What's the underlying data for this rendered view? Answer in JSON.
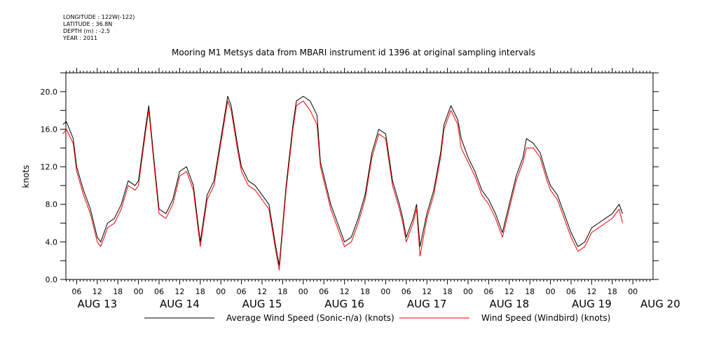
{
  "meta": {
    "longitude": "LONGITUDE : 122W(-122)",
    "latitude": "LATITUDE : 36.8N",
    "depth": "DEPTH (m) : -2.5",
    "year": "YEAR : 2011"
  },
  "chart_data": {
    "type": "line",
    "title": "Mooring M1 Metsys data from MBARI instrument id 1396 at original sampling intervals",
    "xlabel": "",
    "ylabel": "knots",
    "ylim": [
      0,
      22
    ],
    "y_ticks": [
      0,
      4,
      8,
      12,
      16,
      20
    ],
    "y_tick_labels": [
      "0.0",
      "4.0",
      "8.0",
      "12.0",
      "16.0",
      "20.0"
    ],
    "x_range_hours": [
      2,
      165
    ],
    "hour_tick_labels": [
      {
        "h": 6,
        "label": "06"
      },
      {
        "h": 12,
        "label": "12"
      },
      {
        "h": 18,
        "label": "18"
      },
      {
        "h": 24,
        "label": "00"
      },
      {
        "h": 30,
        "label": "06"
      },
      {
        "h": 36,
        "label": "12"
      },
      {
        "h": 42,
        "label": "18"
      },
      {
        "h": 48,
        "label": "00"
      },
      {
        "h": 54,
        "label": "06"
      },
      {
        "h": 60,
        "label": "12"
      },
      {
        "h": 66,
        "label": "18"
      },
      {
        "h": 72,
        "label": "00"
      },
      {
        "h": 78,
        "label": "06"
      },
      {
        "h": 84,
        "label": "12"
      },
      {
        "h": 90,
        "label": "18"
      },
      {
        "h": 96,
        "label": "00"
      },
      {
        "h": 102,
        "label": "06"
      },
      {
        "h": 108,
        "label": "12"
      },
      {
        "h": 114,
        "label": "18"
      },
      {
        "h": 120,
        "label": "00"
      },
      {
        "h": 126,
        "label": "06"
      },
      {
        "h": 132,
        "label": "12"
      },
      {
        "h": 138,
        "label": "18"
      },
      {
        "h": 144,
        "label": "00"
      },
      {
        "h": 150,
        "label": "06"
      },
      {
        "h": 156,
        "label": "12"
      },
      {
        "h": 162,
        "label": "18"
      },
      {
        "h": 168,
        "label": "00"
      }
    ],
    "date_labels": [
      {
        "h": 12,
        "label": "AUG 13"
      },
      {
        "h": 36,
        "label": "AUG 14"
      },
      {
        "h": 60,
        "label": "AUG 15"
      },
      {
        "h": 84,
        "label": "AUG 16"
      },
      {
        "h": 108,
        "label": "AUG 17"
      },
      {
        "h": 132,
        "label": "AUG 18"
      },
      {
        "h": 156,
        "label": "AUG 19"
      },
      {
        "h": 176,
        "label": "AUG 20"
      }
    ],
    "grid": false,
    "legend_position": "bottom",
    "series": [
      {
        "name": "Average Wind Speed (Sonic-n/a) (knots)",
        "color": "#000000",
        "x": [
          2,
          3,
          5,
          6,
          8,
          10,
          12,
          13,
          15,
          17,
          19,
          21,
          23,
          24,
          26,
          27,
          29,
          30,
          32,
          34,
          36,
          38,
          40,
          42,
          44,
          46,
          48,
          50,
          51,
          53,
          54,
          56,
          58,
          60,
          62,
          64,
          65,
          67,
          69,
          70,
          72,
          74,
          76,
          77,
          79,
          80,
          82,
          84,
          86,
          88,
          90,
          92,
          94,
          96,
          98,
          100,
          101,
          102,
          104,
          105,
          106,
          108,
          110,
          112,
          113,
          115,
          117,
          118,
          120,
          122,
          124,
          126,
          128,
          130,
          132,
          134,
          136,
          137,
          139,
          141,
          143,
          144,
          146,
          148,
          150,
          152,
          154,
          156,
          158,
          160,
          162,
          164,
          165
        ],
        "values": [
          16.5,
          16.8,
          15.0,
          12.0,
          9.5,
          7.5,
          4.5,
          4.0,
          6.0,
          6.5,
          8.0,
          10.5,
          10.0,
          10.5,
          16.0,
          18.5,
          11.0,
          7.5,
          7.0,
          8.5,
          11.5,
          12.0,
          10.0,
          4.0,
          9.0,
          10.5,
          15.0,
          19.5,
          18.5,
          14.0,
          12.0,
          10.5,
          10.0,
          9.0,
          8.0,
          3.5,
          1.5,
          10.0,
          16.5,
          19.0,
          19.5,
          19.0,
          17.5,
          12.5,
          9.5,
          8.0,
          6.0,
          4.0,
          4.5,
          6.5,
          9.0,
          13.5,
          16.0,
          15.5,
          10.5,
          8.0,
          6.5,
          4.5,
          6.5,
          8.0,
          3.5,
          7.0,
          9.5,
          13.5,
          16.5,
          18.5,
          17.0,
          15.0,
          13.0,
          11.5,
          9.5,
          8.5,
          7.0,
          5.0,
          8.0,
          11.0,
          13.0,
          15.0,
          14.5,
          13.5,
          11.0,
          10.0,
          9.0,
          7.0,
          5.0,
          3.5,
          4.0,
          5.5,
          6.0,
          6.5,
          7.0,
          8.0,
          7.0
        ]
      },
      {
        "name": "Wind Speed (Windbird) (knots)",
        "color": "#ff0000",
        "x": [
          2,
          3,
          5,
          6,
          8,
          10,
          12,
          13,
          15,
          17,
          19,
          21,
          23,
          24,
          26,
          27,
          29,
          30,
          32,
          34,
          36,
          38,
          40,
          42,
          44,
          46,
          48,
          50,
          51,
          53,
          54,
          56,
          58,
          60,
          62,
          64,
          65,
          67,
          69,
          70,
          72,
          74,
          76,
          77,
          79,
          80,
          82,
          84,
          86,
          88,
          90,
          92,
          94,
          96,
          98,
          100,
          101,
          102,
          104,
          105,
          106,
          108,
          110,
          112,
          113,
          115,
          117,
          118,
          120,
          122,
          124,
          126,
          128,
          130,
          132,
          134,
          136,
          137,
          139,
          141,
          143,
          144,
          146,
          148,
          150,
          152,
          154,
          156,
          158,
          160,
          162,
          164,
          165
        ],
        "values": [
          15.5,
          16.0,
          14.5,
          11.5,
          9.0,
          7.0,
          4.0,
          3.5,
          5.5,
          6.0,
          7.5,
          10.0,
          9.5,
          10.0,
          15.5,
          18.0,
          10.5,
          7.0,
          6.5,
          8.0,
          11.0,
          11.5,
          9.5,
          3.5,
          8.5,
          10.0,
          14.5,
          19.0,
          18.0,
          13.5,
          11.5,
          10.0,
          9.5,
          8.5,
          7.5,
          3.0,
          1.0,
          9.5,
          16.0,
          18.5,
          19.0,
          18.0,
          16.5,
          12.0,
          9.0,
          7.5,
          5.5,
          3.5,
          4.0,
          6.0,
          8.5,
          13.0,
          15.5,
          15.0,
          10.0,
          7.5,
          6.0,
          4.0,
          6.0,
          7.5,
          2.5,
          6.5,
          9.0,
          13.0,
          16.0,
          18.0,
          16.5,
          14.0,
          12.5,
          11.0,
          9.0,
          8.0,
          6.5,
          4.5,
          7.5,
          10.5,
          12.5,
          14.0,
          14.0,
          13.0,
          10.5,
          9.5,
          8.5,
          6.5,
          4.5,
          3.0,
          3.5,
          5.0,
          5.5,
          6.0,
          6.5,
          7.5,
          6.0
        ]
      }
    ]
  }
}
